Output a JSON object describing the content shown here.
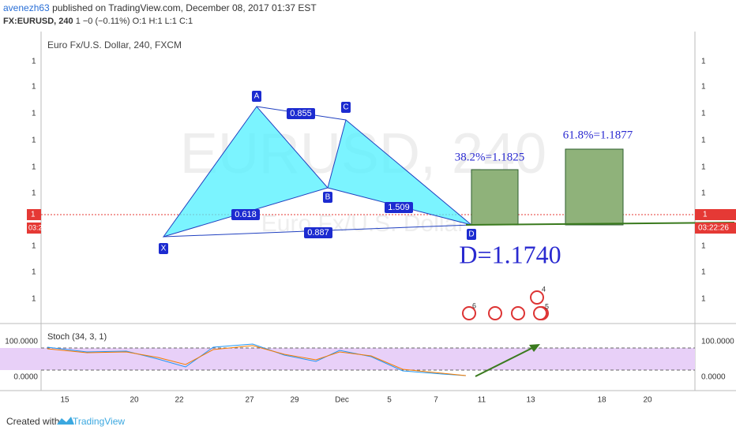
{
  "header": {
    "author": "avenezh63",
    "published": "published on TradingView.com, December 08, 2017 01:37 EST",
    "symbol": "FX:EURUSD, 240",
    "change": "1 −0 (−0.11%)",
    "ohlc": "O:1 H:1 L:1 C:1"
  },
  "chart": {
    "legend": "Euro Fx/U.S. Dollar, 240, FXCM",
    "watermark": "EURUSD, 240",
    "watermark_sub": "Euro Fx/U.S. Dollar",
    "price_ticks": [
      "1",
      "1",
      "1",
      "1",
      "1",
      "1",
      "1",
      "1",
      "1"
    ],
    "price_label": "1",
    "left_price_label": "1",
    "left_time_label": "03:2",
    "time_label": "03:22:26",
    "points": [
      "X",
      "A",
      "B",
      "C",
      "D"
    ],
    "ratios": [
      "0.855",
      "0.618",
      "1.509",
      "0.887"
    ],
    "targets": [
      "38.2%=1.1825",
      "61.8%=1.1877"
    ],
    "d_label": "D=1.1740",
    "events": [
      "6",
      "4",
      "5"
    ]
  },
  "stoch": {
    "title": "Stoch (34, 3, 1)",
    "ticks": [
      "100.0000",
      "0.0000"
    ]
  },
  "x_ticks": [
    "15",
    "20",
    "22",
    "27",
    "29",
    "Dec",
    "5",
    "7",
    "11",
    "13",
    "18",
    "20"
  ],
  "footer": {
    "created": "Created with",
    "brand": "TradingView"
  }
}
